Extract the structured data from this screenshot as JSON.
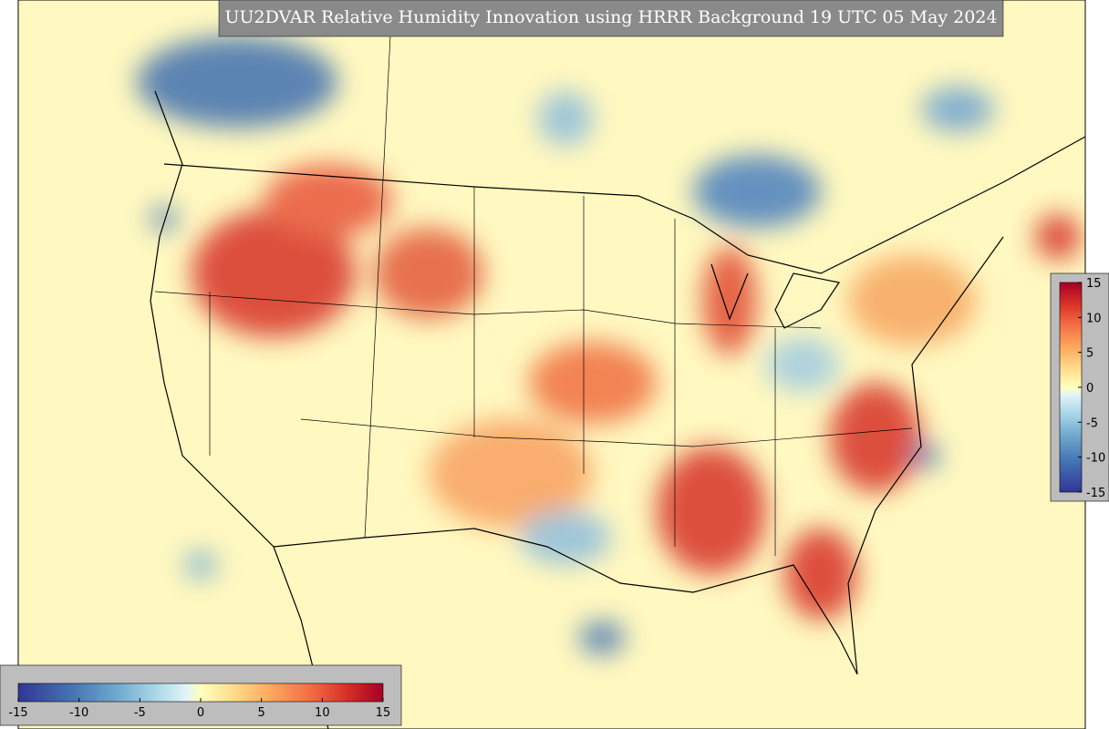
{
  "title": "UU2DVAR Relative Humidity Innovation using HRRR Background 19 UTC 05 May 2024",
  "colorbar_bottom": {
    "ticks": [
      -15,
      -10,
      -5,
      0,
      5,
      10,
      15
    ]
  },
  "colorbar_right": {
    "ticks": [
      15,
      10,
      5,
      0,
      -5,
      -10,
      -15
    ]
  }
}
